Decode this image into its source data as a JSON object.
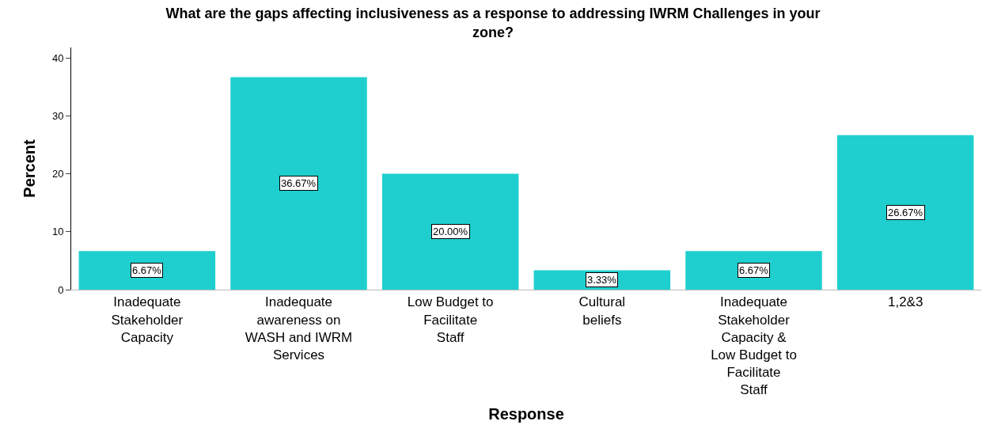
{
  "chart_data": {
    "type": "bar",
    "title": "What are the gaps affecting inclusiveness as a response to addressing IWRM Challenges in your zone?",
    "xlabel": "Response",
    "ylabel": "Percent",
    "categories": [
      "Inadequate Stakeholder Capacity",
      "Inadequate awareness on WASH and IWRM Services",
      "Low Budget to Facilitate Staff",
      "Cultural beliefs",
      "Inadequate Stakeholder Capacity & Low Budget to Facilitate Staff",
      "1,2&3"
    ],
    "values": [
      6.67,
      36.67,
      20.0,
      3.33,
      6.67,
      26.67
    ],
    "value_labels": [
      "6.67%",
      "36.67%",
      "20.00%",
      "3.33%",
      "6.67%",
      "26.67%"
    ],
    "color": "#1fcfcf",
    "ylim": [
      0,
      41.8
    ],
    "yticks": [
      0,
      10,
      20,
      30,
      40
    ]
  }
}
